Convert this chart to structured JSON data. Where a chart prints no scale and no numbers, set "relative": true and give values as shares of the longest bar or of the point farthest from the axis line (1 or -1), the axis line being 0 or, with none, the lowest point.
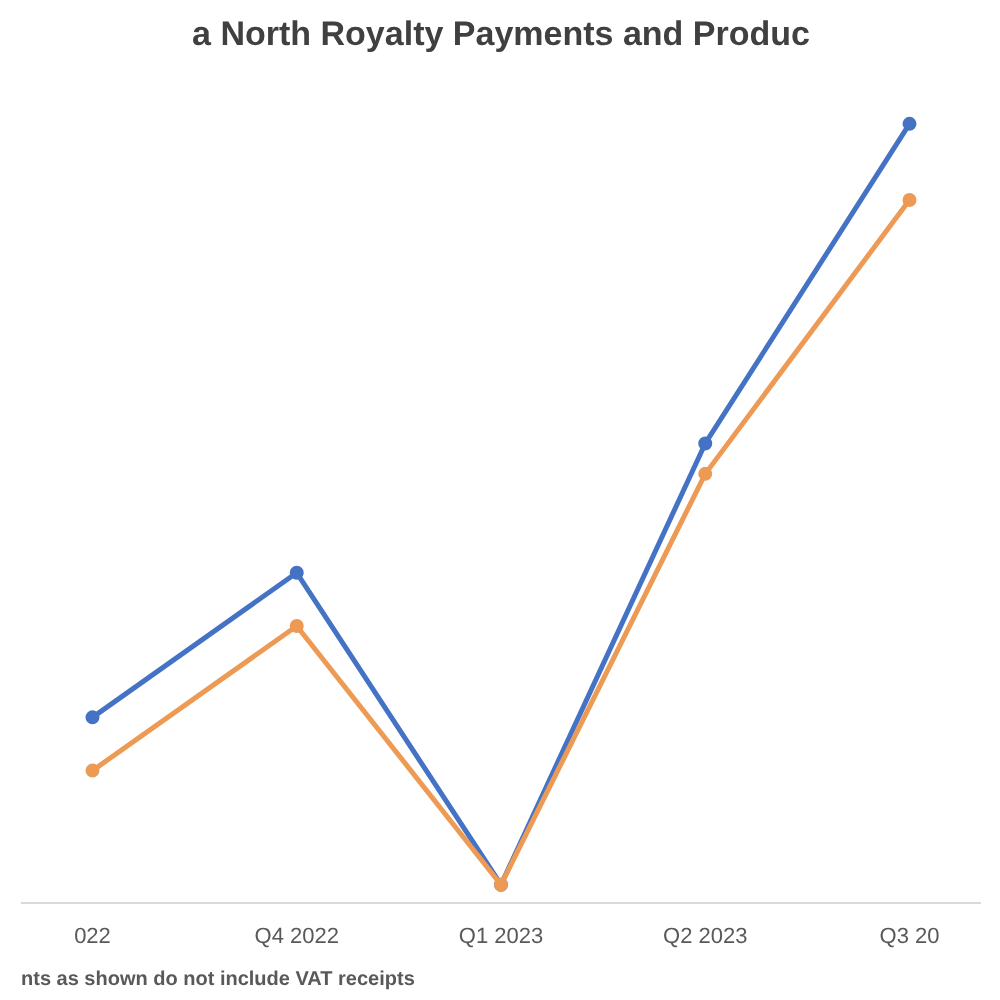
{
  "chart_data": {
    "type": "line",
    "title": "a North Royalty Payments and Produc",
    "relative": true,
    "categories": [
      "022",
      "Q4 2022",
      "Q1 2023",
      "Q2 2023",
      "Q3 20"
    ],
    "series": [
      {
        "color": "#4472c4",
        "values": [
          0.22,
          0.41,
          0,
          0.58,
          1
        ]
      },
      {
        "color": "#ed9a55",
        "values": [
          0.15,
          0.34,
          0,
          0.54,
          0.9
        ]
      }
    ],
    "marker": "circle",
    "annotations": [
      "nts as shown do not include VAT receipts"
    ]
  }
}
